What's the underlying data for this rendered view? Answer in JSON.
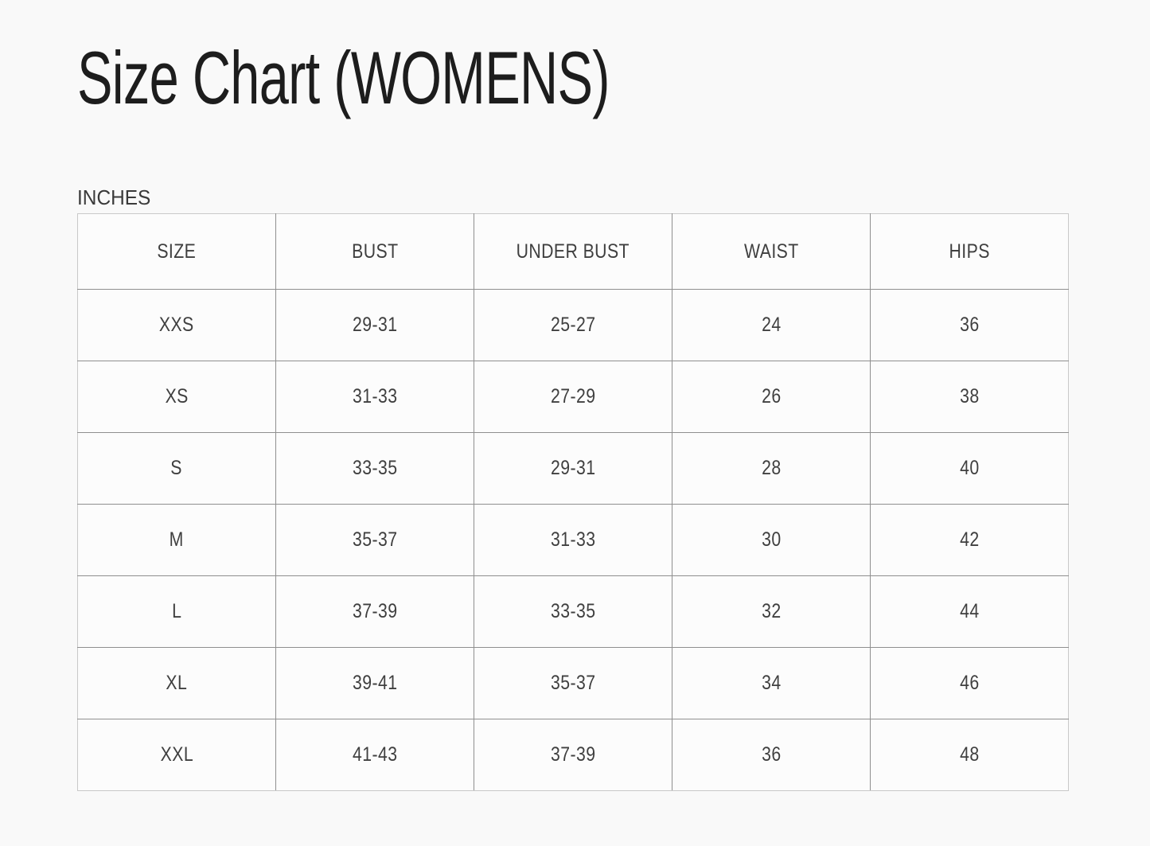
{
  "page": {
    "title": "Size Chart (WOMENS)",
    "units_label": "INCHES"
  },
  "colors": {
    "background": "#f9f9f9",
    "table_background": "#fcfcfc",
    "outer_border": "#c9c9c9",
    "inner_border": "#8f8f8f",
    "title_text": "#1d1d1d",
    "table_text": "#3f3f3f"
  },
  "size_table": {
    "headers": [
      "SIZE",
      "BUST",
      "UNDER BUST",
      "WAIST",
      "HIPS"
    ],
    "rows": [
      [
        "XXS",
        "29-31",
        "25-27",
        "24",
        "36"
      ],
      [
        "XS",
        "31-33",
        "27-29",
        "26",
        "38"
      ],
      [
        "S",
        "33-35",
        "29-31",
        "28",
        "40"
      ],
      [
        "M",
        "35-37",
        "31-33",
        "30",
        "42"
      ],
      [
        "L",
        "37-39",
        "33-35",
        "32",
        "44"
      ],
      [
        "XL",
        "39-41",
        "35-37",
        "34",
        "46"
      ],
      [
        "XXL",
        "41-43",
        "37-39",
        "36",
        "48"
      ]
    ]
  }
}
